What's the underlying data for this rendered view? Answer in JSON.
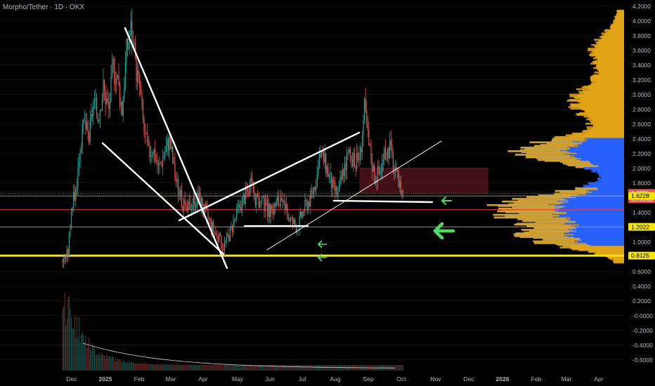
{
  "title": "Morpho/Tether · 1D · OKX",
  "colors": {
    "background": "#000000",
    "up": "#26a69a",
    "down": "#ef5350",
    "drawing": "#ffffff",
    "support_yellow": "#f5e50a",
    "support_red": "#f23645",
    "arrow": "#4cd964",
    "profile_gold": "#e6a817",
    "profile_blue": "#2962ff",
    "zone": "#7a1c2a"
  },
  "chart_data": {
    "type": "candlestick",
    "title": "Morpho/Tether · 1D · OKX",
    "y_axis": {
      "min": -0.6,
      "max": 4.2,
      "ticks": [
        "4.2000",
        "4.0000",
        "3.8000",
        "3.6000",
        "3.4000",
        "3.2000",
        "3.0000",
        "2.8000",
        "2.6000",
        "2.4000",
        "2.2000",
        "2.0000",
        "1.8000",
        "1.6000",
        "1.4000",
        "1.2000",
        "1.0000",
        "0.8000",
        "0.6000",
        "0.4000",
        "0.2000",
        "-0.0000",
        "-0.2000",
        "-0.4000",
        "-0.6000"
      ]
    },
    "x_axis": {
      "ticks": [
        "Dec",
        "2025",
        "Feb",
        "Mar",
        "Apr",
        "May",
        "Jun",
        "Jul",
        "Aug",
        "Sep",
        "Oct",
        "Nov",
        "Dec",
        "2026",
        "Feb",
        "Mar",
        "Apr"
      ]
    },
    "price_labels": [
      {
        "value": 1.6581,
        "text": "1.6581",
        "sub": "03:56:02",
        "color": "#ef5350"
      },
      {
        "value": 1.6228,
        "text": "1.6228",
        "color": "#f5e50a"
      },
      {
        "value": 1.2022,
        "text": "1.2022",
        "color": "#f5e50a"
      },
      {
        "value": 0.8125,
        "text": "0.8125",
        "color": "#f5e50a"
      }
    ],
    "horizontal_levels": [
      {
        "value": 1.6581,
        "style": "dotted-red"
      },
      {
        "value": 1.6228,
        "style": "thin-yellow"
      },
      {
        "value": 1.435,
        "style": "red"
      },
      {
        "value": 1.2022,
        "style": "thin-yellow"
      },
      {
        "value": 0.8125,
        "style": "thick-yellow"
      }
    ],
    "price_path": [
      [
        "2024-11-20",
        0.75
      ],
      [
        "2024-11-25",
        0.85
      ],
      [
        "2024-11-28",
        1.45
      ],
      [
        "2024-12-02",
        1.7
      ],
      [
        "2024-12-06",
        2.3
      ],
      [
        "2024-12-10",
        2.6
      ],
      [
        "2024-12-14",
        2.4
      ],
      [
        "2024-12-18",
        2.9
      ],
      [
        "2024-12-22",
        2.7
      ],
      [
        "2024-12-27",
        3.1
      ],
      [
        "2025-01-01",
        2.8
      ],
      [
        "2025-01-05",
        3.4
      ],
      [
        "2025-01-09",
        3.2
      ],
      [
        "2025-01-13",
        2.8
      ],
      [
        "2025-01-17",
        3.6
      ],
      [
        "2025-01-21",
        3.9
      ],
      [
        "2025-01-25",
        3.4
      ],
      [
        "2025-01-29",
        3.1
      ],
      [
        "2025-02-02",
        2.5
      ],
      [
        "2025-02-06",
        2.2
      ],
      [
        "2025-02-10",
        2.3
      ],
      [
        "2025-02-15",
        2.0
      ],
      [
        "2025-02-20",
        2.2
      ],
      [
        "2025-02-25",
        2.4
      ],
      [
        "2025-03-02",
        1.9
      ],
      [
        "2025-03-07",
        1.6
      ],
      [
        "2025-03-12",
        1.4
      ],
      [
        "2025-03-18",
        1.55
      ],
      [
        "2025-03-24",
        1.6
      ],
      [
        "2025-03-30",
        1.4
      ],
      [
        "2025-04-05",
        1.2
      ],
      [
        "2025-04-10",
        1.05
      ],
      [
        "2025-04-15",
        0.95
      ],
      [
        "2025-04-20",
        1.1
      ],
      [
        "2025-04-25",
        1.3
      ],
      [
        "2025-04-30",
        1.5
      ],
      [
        "2025-05-05",
        1.65
      ],
      [
        "2025-05-10",
        1.75
      ],
      [
        "2025-05-15",
        1.55
      ],
      [
        "2025-05-22",
        1.5
      ],
      [
        "2025-05-28",
        1.4
      ],
      [
        "2025-06-03",
        1.55
      ],
      [
        "2025-06-09",
        1.45
      ],
      [
        "2025-06-15",
        1.3
      ],
      [
        "2025-06-21",
        1.2
      ],
      [
        "2025-06-27",
        1.45
      ],
      [
        "2025-07-03",
        1.6
      ],
      [
        "2025-07-08",
        1.85
      ],
      [
        "2025-07-13",
        2.2
      ],
      [
        "2025-07-18",
        2.0
      ],
      [
        "2025-07-23",
        1.75
      ],
      [
        "2025-07-28",
        1.65
      ],
      [
        "2025-08-02",
        2.0
      ],
      [
        "2025-08-07",
        2.2
      ],
      [
        "2025-08-12",
        2.05
      ],
      [
        "2025-08-17",
        2.2
      ],
      [
        "2025-08-21",
        2.8
      ],
      [
        "2025-08-25",
        2.3
      ],
      [
        "2025-08-30",
        1.9
      ],
      [
        "2025-09-04",
        1.95
      ],
      [
        "2025-09-09",
        2.2
      ],
      [
        "2025-09-13",
        2.3
      ],
      [
        "2025-09-17",
        1.95
      ],
      [
        "2025-09-21",
        1.8
      ],
      [
        "2025-09-25",
        1.66
      ]
    ],
    "volume_profile_note": "Visible-range volume profile on the right side; gold bars above/below value area, blue bars inside value area"
  }
}
